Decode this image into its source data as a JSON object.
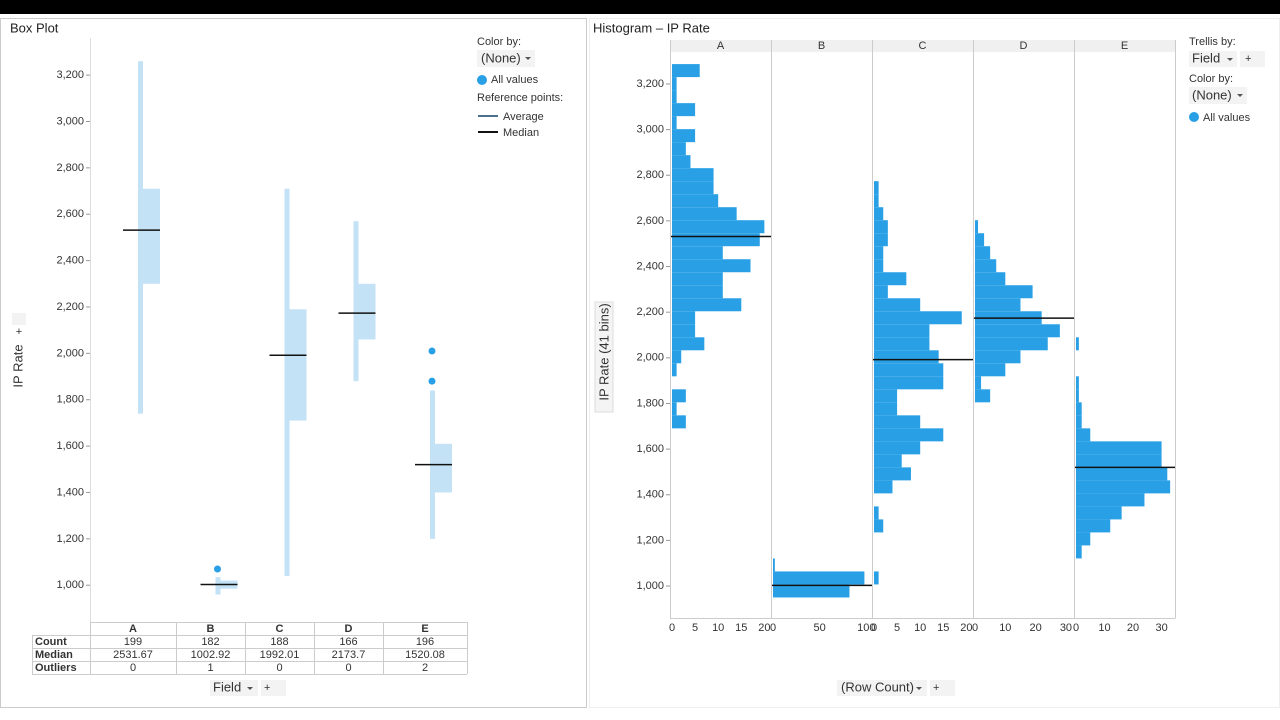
{
  "chart_data": [
    {
      "type": "box",
      "title": "Box Plot",
      "y_label": "IP Rate",
      "x_label": "Field",
      "categories": [
        "A",
        "B",
        "C",
        "D",
        "E"
      ],
      "row_labels": [
        "Count",
        "Median",
        "Outliers"
      ],
      "count": [
        199,
        182,
        188,
        166,
        196
      ],
      "median": [
        2531.67,
        1002.92,
        1992.01,
        2173.7,
        1520.08
      ],
      "outliers": [
        0,
        1,
        0,
        0,
        2
      ],
      "q1": [
        2300,
        985,
        1710,
        2060,
        1400
      ],
      "q3": [
        2710,
        1020,
        2190,
        2300,
        1610
      ],
      "whisker_low": [
        1740,
        960,
        1040,
        1880,
        1200
      ],
      "whisker_high": [
        3260,
        1035,
        2710,
        2570,
        1840
      ],
      "outlier_points": [
        [],
        [
          1070
        ],
        [],
        [],
        [
          1880,
          2010
        ]
      ],
      "color": "#29a0e6",
      "box_color": "#c3e2f6",
      "ylim": [
        850,
        3360
      ],
      "yticks": [
        {
          "value": 1000,
          "label": "1,000"
        },
        {
          "value": 1200,
          "label": "1,200"
        },
        {
          "value": 1400,
          "label": "1,400"
        },
        {
          "value": 1600,
          "label": "1,600"
        },
        {
          "value": 1800,
          "label": "1,800"
        },
        {
          "value": 2000,
          "label": "2,000"
        },
        {
          "value": 2200,
          "label": "2,200"
        },
        {
          "value": 2400,
          "label": "2,400"
        },
        {
          "value": 2600,
          "label": "2,600"
        },
        {
          "value": 2800,
          "label": "2,800"
        },
        {
          "value": 3000,
          "label": "3,000"
        },
        {
          "value": 3200,
          "label": "3,200"
        }
      ]
    },
    {
      "type": "histogram",
      "title": "Histogram – IP Rate",
      "y_label": "IP Rate (41 bins)",
      "x_label": "(Row Count)",
      "color": "#29a0e6",
      "bins": [
        950,
        1007,
        1064,
        1121,
        1178,
        1235,
        1292,
        1349,
        1406,
        1463,
        1520,
        1577,
        1634,
        1691,
        1748,
        1805,
        1862,
        1919,
        1976,
        2033,
        2090,
        2147,
        2204,
        2261,
        2318,
        2375,
        2432,
        2489,
        2546,
        2603,
        2660,
        2717,
        2774,
        2831,
        2888,
        2945,
        3002,
        3059,
        3116,
        3173,
        3230,
        3287
      ],
      "panels": [
        {
          "name": "A",
          "xlim": [
            0,
            21
          ],
          "xticks": [
            0,
            5,
            10,
            15,
            20
          ],
          "counts": [
            0,
            0,
            0,
            0,
            0,
            0,
            0,
            0,
            0,
            0,
            0,
            0,
            0,
            3,
            1,
            3,
            0,
            1,
            2,
            7,
            5,
            5,
            15,
            11,
            11,
            17,
            11,
            19,
            20,
            14,
            10,
            9,
            9,
            4,
            3,
            5,
            1,
            5,
            1,
            1,
            6
          ]
        },
        {
          "name": "B",
          "xlim": [
            0,
            104
          ],
          "xticks": [
            0,
            50,
            100
          ],
          "counts": [
            82,
            98,
            2,
            0,
            0,
            0,
            0,
            0,
            0,
            0,
            0,
            0,
            0,
            0,
            0,
            0,
            0,
            0,
            0,
            0,
            0,
            0,
            0,
            0,
            0,
            0,
            0,
            0,
            0,
            0,
            0,
            0,
            0,
            0,
            0,
            0,
            0,
            0,
            0,
            0,
            0
          ]
        },
        {
          "name": "C",
          "xlim": [
            0,
            21
          ],
          "xticks": [
            0,
            5,
            10,
            15,
            20
          ],
          "counts": [
            0,
            1,
            0,
            0,
            0,
            2,
            1,
            0,
            4,
            8,
            6,
            10,
            15,
            10,
            5,
            5,
            15,
            15,
            14,
            12,
            12,
            19,
            10,
            3,
            7,
            2,
            2,
            3,
            3,
            2,
            1,
            1,
            0,
            0,
            0,
            0,
            0,
            0,
            0,
            0,
            0
          ]
        },
        {
          "name": "D",
          "xlim": [
            0,
            32
          ],
          "xticks": [
            0,
            10,
            20,
            30
          ],
          "counts": [
            0,
            0,
            0,
            0,
            0,
            0,
            0,
            0,
            0,
            0,
            0,
            0,
            0,
            0,
            0,
            5,
            2,
            10,
            15,
            24,
            28,
            22,
            15,
            19,
            10,
            7,
            5,
            3,
            1,
            0,
            0,
            0,
            0,
            0,
            0,
            0,
            0,
            0,
            0,
            0,
            0
          ]
        },
        {
          "name": "E",
          "xlim": [
            0,
            34
          ],
          "xticks": [
            0,
            10,
            20,
            30
          ],
          "counts": [
            0,
            0,
            0,
            2,
            5,
            12,
            16,
            24,
            33,
            32,
            30,
            30,
            5,
            2,
            2,
            1,
            1,
            0,
            0,
            1,
            0,
            0,
            0,
            0,
            0,
            0,
            0,
            0,
            0,
            0,
            0,
            0,
            0,
            0,
            0,
            0,
            0,
            0,
            0,
            0,
            0
          ]
        }
      ],
      "ylim": [
        860,
        3340
      ],
      "yticks": [
        {
          "value": 1000,
          "label": "1,000"
        },
        {
          "value": 1200,
          "label": "1,200"
        },
        {
          "value": 1400,
          "label": "1,400"
        },
        {
          "value": 1600,
          "label": "1,600"
        },
        {
          "value": 1800,
          "label": "1,800"
        },
        {
          "value": 2000,
          "label": "2,000"
        },
        {
          "value": 2200,
          "label": "2,200"
        },
        {
          "value": 2400,
          "label": "2,400"
        },
        {
          "value": 2600,
          "label": "2,600"
        },
        {
          "value": 2800,
          "label": "2,800"
        },
        {
          "value": 3000,
          "label": "3,000"
        },
        {
          "value": 3200,
          "label": "3,200"
        }
      ]
    }
  ],
  "ui": {
    "color_by_label": "Color by:",
    "color_by_value": "(None)",
    "legend_item": "All values",
    "reference_label": "Reference points:",
    "reference_items": [
      "Average",
      "Median"
    ],
    "trellis_label": "Trellis by:",
    "trellis_value": "Field",
    "plus": "+"
  }
}
